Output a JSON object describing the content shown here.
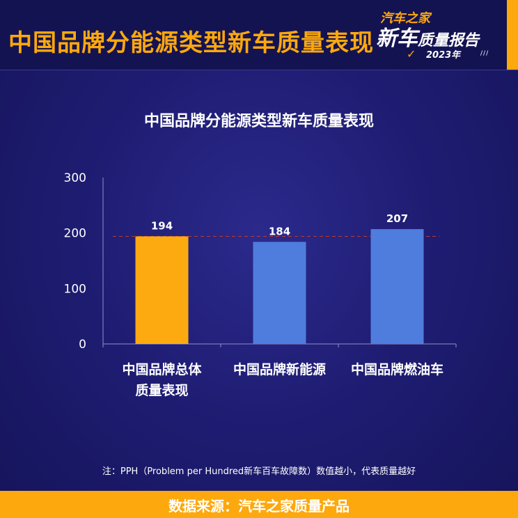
{
  "header": {
    "title": "中国品牌分能源类型新车质量表现",
    "logo": {
      "brand": "汽车之家",
      "main": "新车",
      "sub": "质量报告",
      "year": "2023年"
    }
  },
  "colors": {
    "accent": "#fda80d",
    "bar_total": "#fdaa10",
    "bar_other": "#4f7dde",
    "reference_line": "#c0392b",
    "background": "#1f1d73"
  },
  "chart_data": {
    "type": "bar",
    "title": "中国品牌分能源类型新车质量表现",
    "categories": [
      "中国品牌总体质量表现",
      "中国品牌新能源",
      "中国品牌燃油车"
    ],
    "category_lines": [
      [
        "中国品牌总体",
        "质量表现"
      ],
      [
        "中国品牌新能源"
      ],
      [
        "中国品牌燃油车"
      ]
    ],
    "values": [
      194,
      184,
      207
    ],
    "ylim": [
      0,
      300
    ],
    "yticks": [
      0,
      100,
      200,
      300
    ],
    "reference_line": 194,
    "grid": false,
    "legend": "none"
  },
  "footnote": "注：PPH（Problem per Hundred新车百车故障数）数值越小，代表质量越好",
  "footer": "数据来源：汽车之家质量产品"
}
